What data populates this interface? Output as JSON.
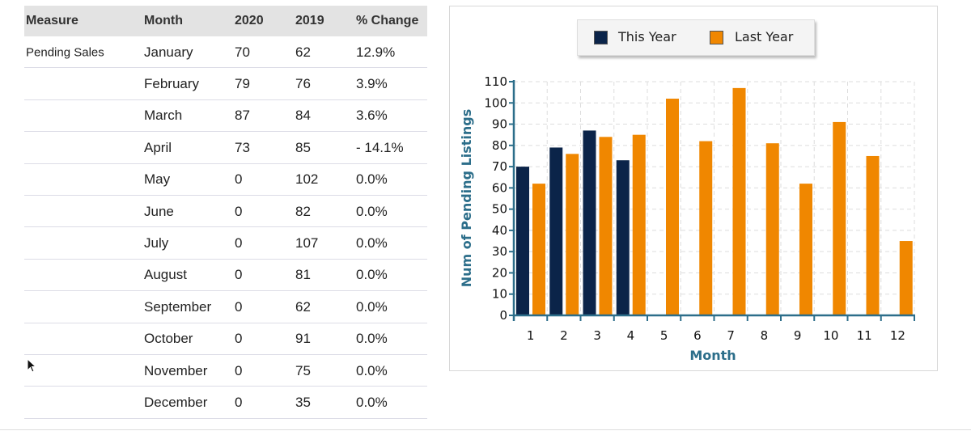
{
  "table": {
    "headers": [
      "Measure",
      "Month",
      "2020",
      "2019",
      "% Change"
    ],
    "measure": "Pending Sales",
    "rows": [
      {
        "month": "January",
        "y2020": "70",
        "y2019": "62",
        "change": "12.9%"
      },
      {
        "month": "February",
        "y2020": "79",
        "y2019": "76",
        "change": "3.9%"
      },
      {
        "month": "March",
        "y2020": "87",
        "y2019": "84",
        "change": "3.6%"
      },
      {
        "month": "April",
        "y2020": "73",
        "y2019": "85",
        "change": "- 14.1%"
      },
      {
        "month": "May",
        "y2020": "0",
        "y2019": "102",
        "change": "0.0%"
      },
      {
        "month": "June",
        "y2020": "0",
        "y2019": "82",
        "change": "0.0%"
      },
      {
        "month": "July",
        "y2020": "0",
        "y2019": "107",
        "change": "0.0%"
      },
      {
        "month": "August",
        "y2020": "0",
        "y2019": "81",
        "change": "0.0%"
      },
      {
        "month": "September",
        "y2020": "0",
        "y2019": "62",
        "change": "0.0%"
      },
      {
        "month": "October",
        "y2020": "0",
        "y2019": "91",
        "change": "0.0%"
      },
      {
        "month": "November",
        "y2020": "0",
        "y2019": "75",
        "change": "0.0%"
      },
      {
        "month": "December",
        "y2020": "0",
        "y2019": "35",
        "change": "0.0%"
      }
    ]
  },
  "chart_data": {
    "type": "bar",
    "categories": [
      "1",
      "2",
      "3",
      "4",
      "5",
      "6",
      "7",
      "8",
      "9",
      "10",
      "11",
      "12"
    ],
    "series": [
      {
        "name": "This Year",
        "color": "#0b2449",
        "values": [
          70,
          79,
          87,
          73,
          0,
          0,
          0,
          0,
          0,
          0,
          0,
          0
        ]
      },
      {
        "name": "Last Year",
        "color": "#f08700",
        "values": [
          62,
          76,
          84,
          85,
          102,
          82,
          107,
          81,
          62,
          91,
          75,
          35
        ]
      }
    ],
    "xlabel": "Month",
    "ylabel": "Num of Pending Listings",
    "ylim": [
      0,
      110
    ],
    "yticks": [
      0,
      10,
      20,
      30,
      40,
      50,
      60,
      70,
      80,
      90,
      100,
      110
    ],
    "grid": true,
    "legend": "top-center",
    "axis_color": "#2c6e8a"
  }
}
